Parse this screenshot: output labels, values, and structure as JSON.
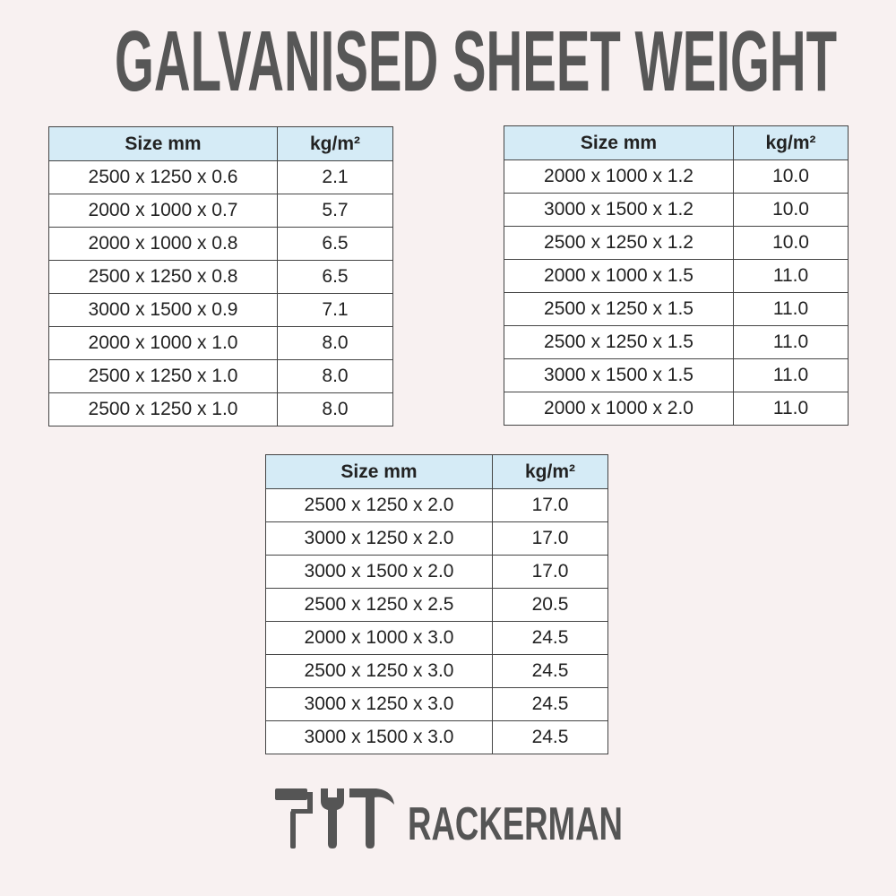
{
  "header": {
    "title": "GALVANISED SHEET WEIGHT"
  },
  "tables": [
    {
      "header": [
        "Size mm",
        "kg/m²"
      ],
      "rows": [
        [
          "2500 x 1250 x 0.6",
          "2.1"
        ],
        [
          "2000 x 1000 x 0.7",
          "5.7"
        ],
        [
          "2000 x 1000 x 0.8",
          "6.5"
        ],
        [
          "2500 x 1250 x 0.8",
          "6.5"
        ],
        [
          "3000 x 1500 x 0.9",
          "7.1"
        ],
        [
          "2000 x 1000 x 1.0",
          "8.0"
        ],
        [
          "2500 x 1250 x 1.0",
          "8.0"
        ],
        [
          "2500 x 1250 x 1.0",
          "8.0"
        ]
      ]
    },
    {
      "header": [
        "Size mm",
        "kg/m²"
      ],
      "rows": [
        [
          "2000 x 1000 x 1.2",
          "10.0"
        ],
        [
          "3000 x 1500 x 1.2",
          "10.0"
        ],
        [
          "2500 x 1250 x 1.2",
          "10.0"
        ],
        [
          "2000 x 1000 x 1.5",
          "11.0"
        ],
        [
          "2500 x 1250 x 1.5",
          "11.0"
        ],
        [
          "2500 x 1250 x 1.5",
          "11.0"
        ],
        [
          "3000 x 1500 x 1.5",
          "11.0"
        ],
        [
          "2000 x 1000 x 2.0",
          "11.0"
        ]
      ]
    },
    {
      "header": [
        "Size mm",
        "kg/m²"
      ],
      "rows": [
        [
          "2500 x 1250 x 2.0",
          "17.0"
        ],
        [
          "3000 x 1250 x 2.0",
          "17.0"
        ],
        [
          "3000 x 1500 x 2.0",
          "17.0"
        ],
        [
          "2500 x 1250 x 2.5",
          "20.5"
        ],
        [
          "2000 x 1000 x 3.0",
          "24.5"
        ],
        [
          "2500 x 1250 x 3.0",
          "24.5"
        ],
        [
          "3000 x 1250 x 3.0",
          "24.5"
        ],
        [
          "3000 x 1500 x 3.0",
          "24.5"
        ]
      ]
    }
  ],
  "logo": {
    "text": "RACKERMAN"
  }
}
